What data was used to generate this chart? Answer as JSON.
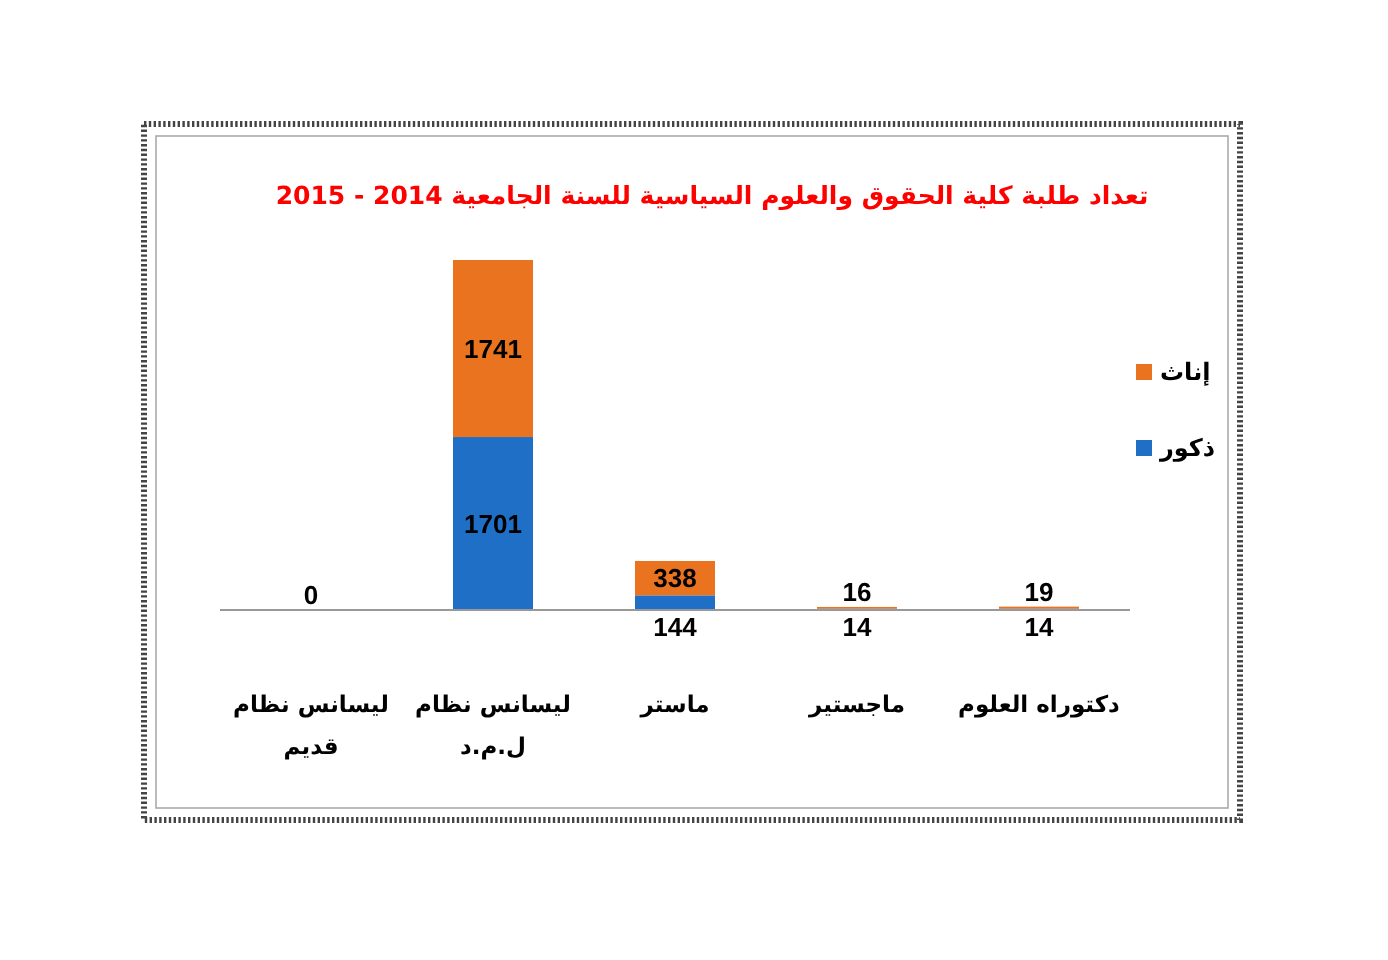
{
  "chart_data": {
    "type": "bar",
    "title": "تعداد طلبة كلية الحقوق والعلوم السياسية للسنة الجامعية 2014 - 2015",
    "categories": [
      "ليسانس نظام قديم",
      "ليسانس نظام ل.م.د",
      "ماستر",
      "ماجستير",
      "دكتوراه العلوم"
    ],
    "stacked": true,
    "series": [
      {
        "name": "ذكور",
        "color": "#1f6fc6",
        "values": [
          0,
          1701,
          144,
          14,
          14
        ],
        "value_labels": [
          "0",
          "1701",
          "144",
          "14",
          "14"
        ]
      },
      {
        "name": "إناث",
        "color": "#ea7320",
        "values": [
          0,
          1741,
          338,
          16,
          19
        ],
        "value_labels": [
          null,
          "1741",
          "338",
          "16",
          "19"
        ]
      }
    ],
    "legend": "right"
  }
}
